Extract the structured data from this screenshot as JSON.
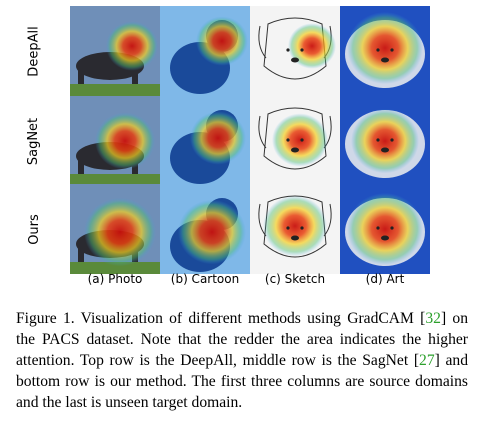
{
  "rows": [
    {
      "label": "DeepAll"
    },
    {
      "label": "SagNet"
    },
    {
      "label": "Ours"
    }
  ],
  "columns": [
    {
      "label": "(a) Photo",
      "domain": "photo"
    },
    {
      "label": "(b) Cartoon",
      "domain": "cartoon"
    },
    {
      "label": "(c) Sketch",
      "domain": "sketch"
    },
    {
      "label": "(d) Art",
      "domain": "art"
    }
  ],
  "caption": {
    "part1": "Figure 1. Visualization of different methods using GradCAM [",
    "ref1": "32",
    "part2": "] on the PACS dataset. Note that the redder the area indicates the higher attention. Top row is the DeepAll, middle row is the SagNet [",
    "ref2": "27",
    "part3": "] and bottom row is our method. The first three columns are source domains and the last is unseen target domain."
  },
  "colors": {
    "citation": "#2ca02c",
    "heat_hot": "#c8100c",
    "heat_warm": "#f5d020",
    "heat_cool": "#3aa0e0",
    "heat_cold": "#2050c0"
  }
}
